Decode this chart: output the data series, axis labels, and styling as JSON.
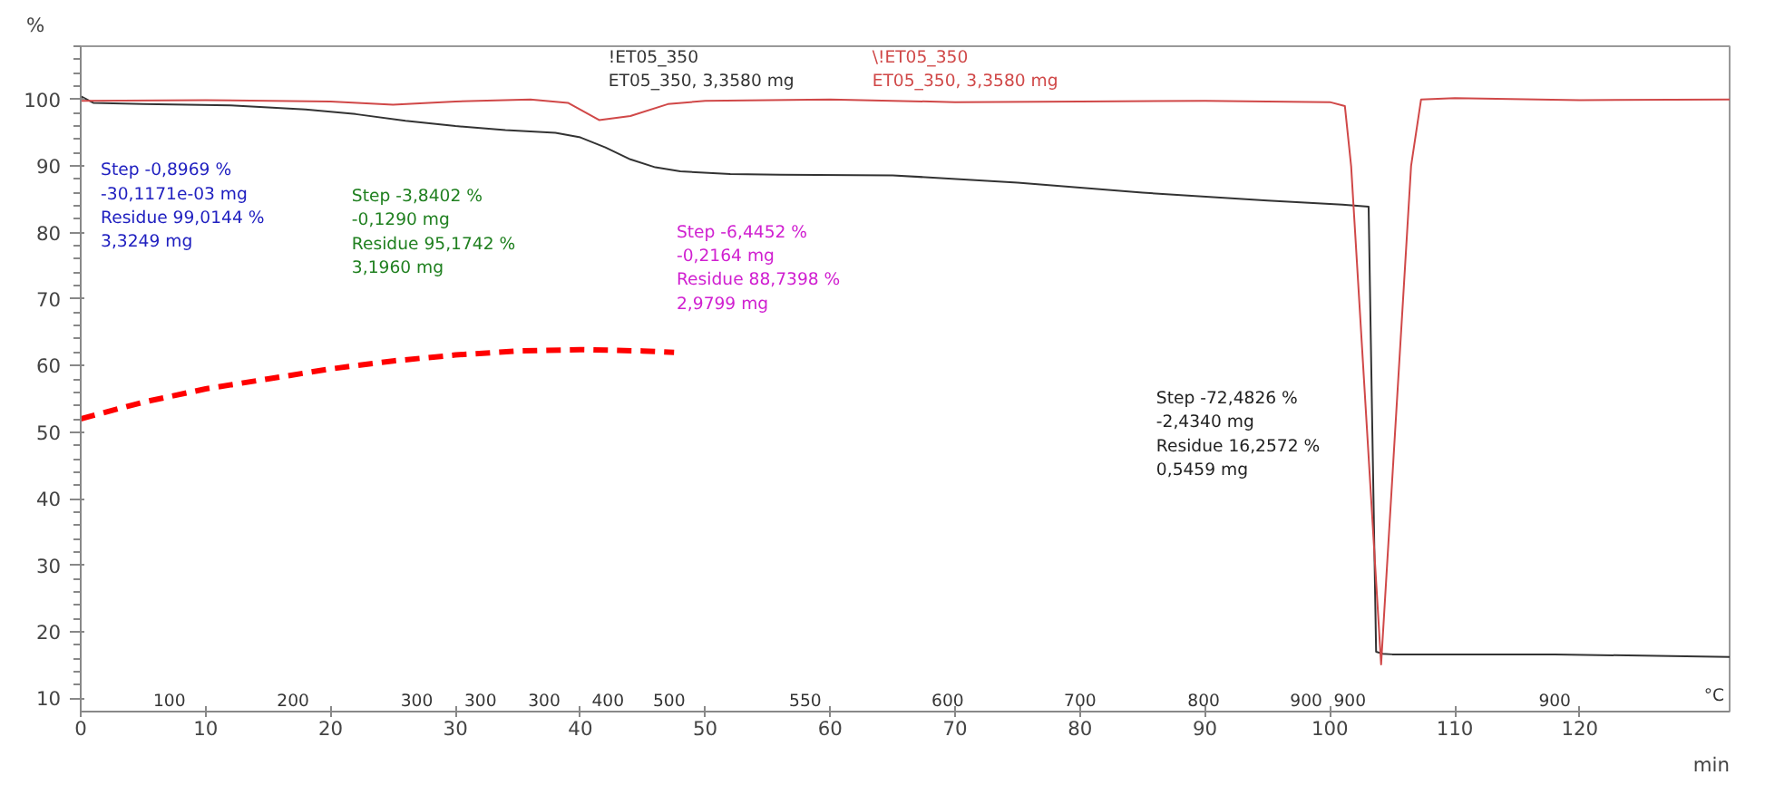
{
  "chart_data": {
    "type": "line",
    "xlabel": "min",
    "ylabel": "%",
    "xlim": [
      0,
      132
    ],
    "xticks": [
      0,
      10,
      20,
      30,
      40,
      50,
      60,
      70,
      80,
      90,
      100,
      110,
      120
    ],
    "ylim": [
      8,
      108
    ],
    "yticks": [
      10,
      20,
      30,
      40,
      50,
      60,
      70,
      80,
      90,
      100
    ],
    "grid": false,
    "legend": "top",
    "marker": "none",
    "series": [
      {
        "name": "!ET05_350\nET05_350, 3,3580 mg",
        "color": "#333333",
        "line_style": "solid",
        "x": [
          0,
          1,
          5,
          12,
          18,
          22,
          26,
          30,
          34,
          36,
          38,
          40,
          42,
          44,
          46,
          48,
          52,
          56,
          65,
          75,
          85,
          95,
          101,
          103.1,
          103.4,
          103.7,
          104.2,
          105,
          110,
          118,
          125,
          132
        ],
        "values": [
          100.5,
          99.5,
          99.3,
          99.1,
          98.5,
          97.8,
          96.8,
          96.0,
          95.4,
          95.2,
          95.0,
          94.3,
          92.8,
          91.0,
          89.8,
          89.2,
          88.8,
          88.7,
          88.6,
          87.5,
          86.0,
          84.8,
          84.2,
          83.9,
          50,
          17,
          16.7,
          16.6,
          16.6,
          16.6,
          16.4,
          16.2
        ]
      },
      {
        "name": "\\!ET05_350\nET05_350, 3,3580 mg",
        "color": "#d04848",
        "line_style": "solid",
        "x": [
          0,
          10,
          20,
          25,
          30,
          36,
          39,
          41.5,
          44,
          47,
          50,
          60,
          70,
          80,
          90,
          100,
          101.2,
          101.7,
          104.1,
          106.5,
          107.3,
          110,
          120,
          132
        ],
        "values": [
          99.8,
          99.9,
          99.7,
          99.2,
          99.7,
          100.0,
          99.5,
          96.9,
          97.5,
          99.3,
          99.8,
          100.0,
          99.6,
          99.7,
          99.8,
          99.6,
          99.0,
          90,
          15.1,
          90,
          100.0,
          100.2,
          99.9,
          100.0
        ]
      },
      {
        "color": "#ff0000",
        "line_style": "dashed",
        "x": [
          0,
          5,
          10,
          15,
          20,
          25,
          30,
          35,
          40,
          45,
          47.5
        ],
        "values": [
          52,
          54.5,
          56.5,
          58,
          59.5,
          60.7,
          61.6,
          62.2,
          62.4,
          62.2,
          62
        ]
      }
    ],
    "annotations": [
      "Step        -0,8969 %\n               -30,1171e-03 mg\nResidue   99,0144 %\n               3,3249 mg",
      "Step        -3,8402 %\n               -0,1290 mg\nResidue   95,1742 %\n               3,1960 mg",
      "Step        -6,4452 %\n               -0,2164 mg\nResidue   88,7398 %\n               2,9799 mg",
      "Step        -72,4826 %\n               -2,4340 mg\nResidue   16,2572 %\n               0,5459 mg",
      "100",
      "200",
      "300",
      "300",
      "300",
      "400",
      "500",
      "550",
      "600",
      "700",
      "800",
      "900",
      "900",
      "900",
      "°C"
    ]
  }
}
